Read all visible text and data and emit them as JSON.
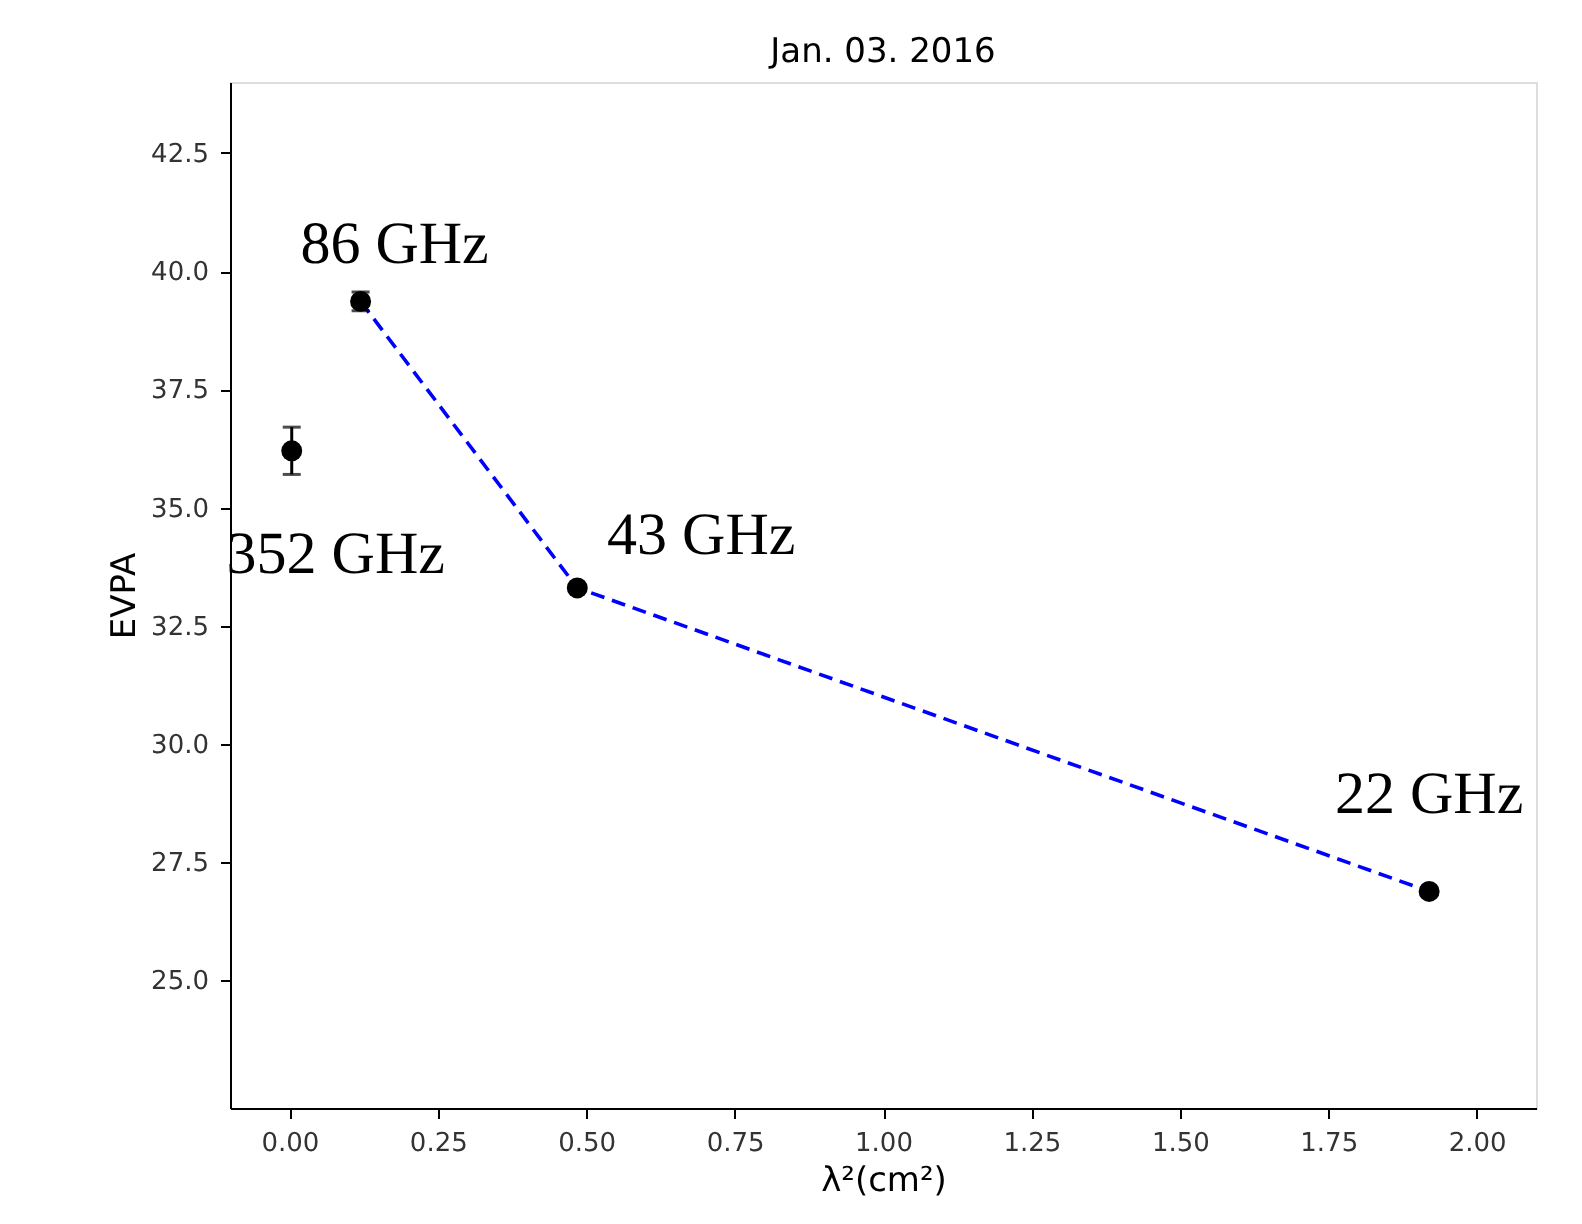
{
  "chart_data": {
    "type": "scatter",
    "title": "Jan. 03. 2016",
    "xlabel": "λ²(cm²)",
    "ylabel": "EVPA",
    "xlim": [
      -0.1,
      2.1
    ],
    "ylim": [
      22.3,
      44.0
    ],
    "xticks": [
      {
        "value": 0,
        "label": "0.00"
      },
      0.25,
      {
        "value": 0.5,
        "label": "0.50"
      },
      0.75,
      {
        "value": 1,
        "label": "1.00"
      },
      1.25,
      {
        "value": 1.5,
        "label": "1.50"
      },
      1.75,
      {
        "value": 2,
        "label": "2.00"
      }
    ],
    "yticks": [
      {
        "value": 25,
        "label": "25.0"
      },
      27.5,
      {
        "value": 30,
        "label": "30.0"
      },
      32.5,
      {
        "value": 35,
        "label": "35.0"
      },
      37.5,
      {
        "value": 40,
        "label": "40.0"
      },
      42.5
    ],
    "grid": false,
    "series": [
      {
        "type": "line",
        "color": "#0000ff",
        "line_style": "dashed",
        "x": [
          0.12,
          0.485,
          1.92
        ],
        "values": [
          39.36,
          33.3,
          26.88
        ]
      },
      {
        "color": "#000000",
        "marker": "circle",
        "x": [
          0.004,
          0.12,
          0.485,
          1.92
        ],
        "values": [
          36.2,
          39.36,
          33.3,
          26.88
        ],
        "errors": [
          0.5,
          0.2,
          null,
          null
        ]
      }
    ],
    "annotations": [
      {
        "text": "86 GHz",
        "x": 0.12,
        "y": 39.36
      },
      {
        "text": "352 GHz",
        "x": 0.004,
        "y": 36.2
      },
      {
        "text": "43 GHz",
        "x": 0.485,
        "y": 33.3
      },
      {
        "text": "22 GHz",
        "x": 1.92,
        "y": 26.88
      }
    ]
  }
}
